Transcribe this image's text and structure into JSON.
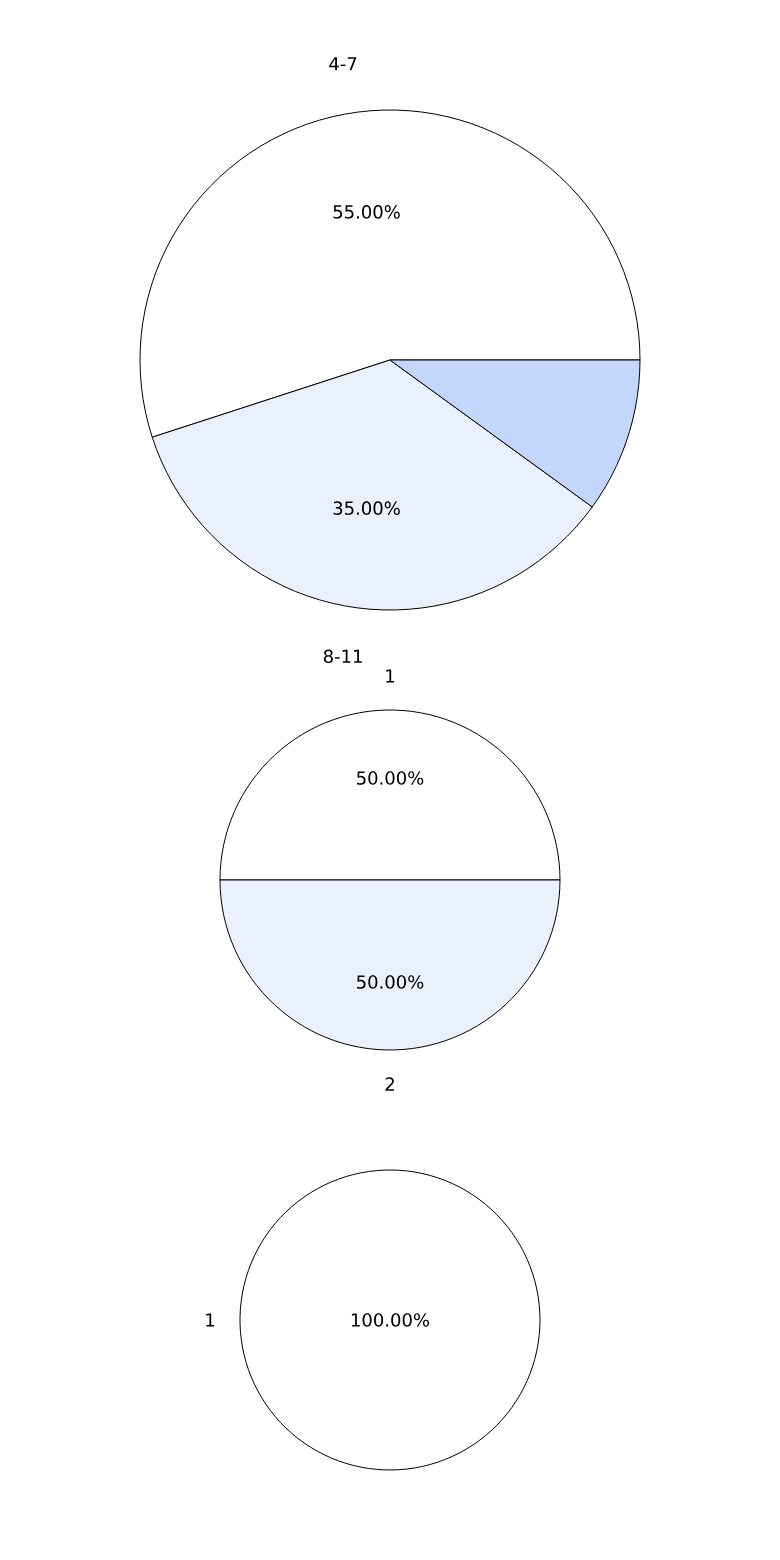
{
  "chart_data": [
    {
      "type": "pie",
      "categories": [
        "4-7",
        "8-11",
        null
      ],
      "values": [
        55,
        35,
        10
      ],
      "colors": [
        "#ffffff",
        "#eaf1fd",
        "#c3d7fd"
      ],
      "value_labels": [
        "55.00%",
        "35.00%",
        null
      ]
    },
    {
      "type": "pie",
      "categories": [
        "1",
        "2"
      ],
      "values": [
        50,
        50
      ],
      "colors": [
        "#ffffff",
        "#eaf1fd"
      ],
      "value_labels": [
        "50.00%",
        "50.00%"
      ]
    },
    {
      "type": "pie",
      "categories": [
        "1"
      ],
      "values": [
        100
      ],
      "colors": [
        "#ffffff"
      ],
      "value_labels": [
        "100.00%"
      ]
    }
  ]
}
